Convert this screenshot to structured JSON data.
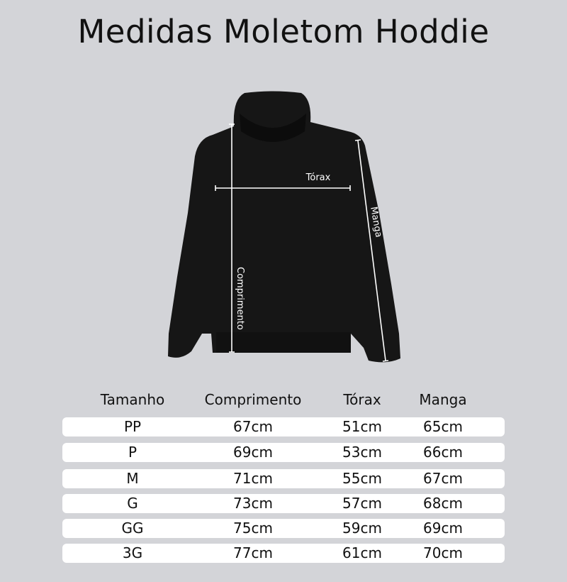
{
  "title": "Medidas Moletom Hoddie",
  "diagram": {
    "labels": {
      "chest": "Tórax",
      "length": "Comprimento",
      "sleeve": "Manga"
    },
    "colors": {
      "garment": "#161616",
      "lines": "#ffffff",
      "background": "#d3d4d8"
    }
  },
  "table": {
    "headers": [
      "Tamanho",
      "Comprimento",
      "Tórax",
      "Manga"
    ],
    "rows": [
      [
        "PP",
        "67cm",
        "51cm",
        "65cm"
      ],
      [
        "P",
        "69cm",
        "53cm",
        "66cm"
      ],
      [
        "M",
        "71cm",
        "55cm",
        "67cm"
      ],
      [
        "G",
        "73cm",
        "57cm",
        "68cm"
      ],
      [
        "GG",
        "75cm",
        "59cm",
        "69cm"
      ],
      [
        "3G",
        "77cm",
        "61cm",
        "70cm"
      ]
    ]
  }
}
